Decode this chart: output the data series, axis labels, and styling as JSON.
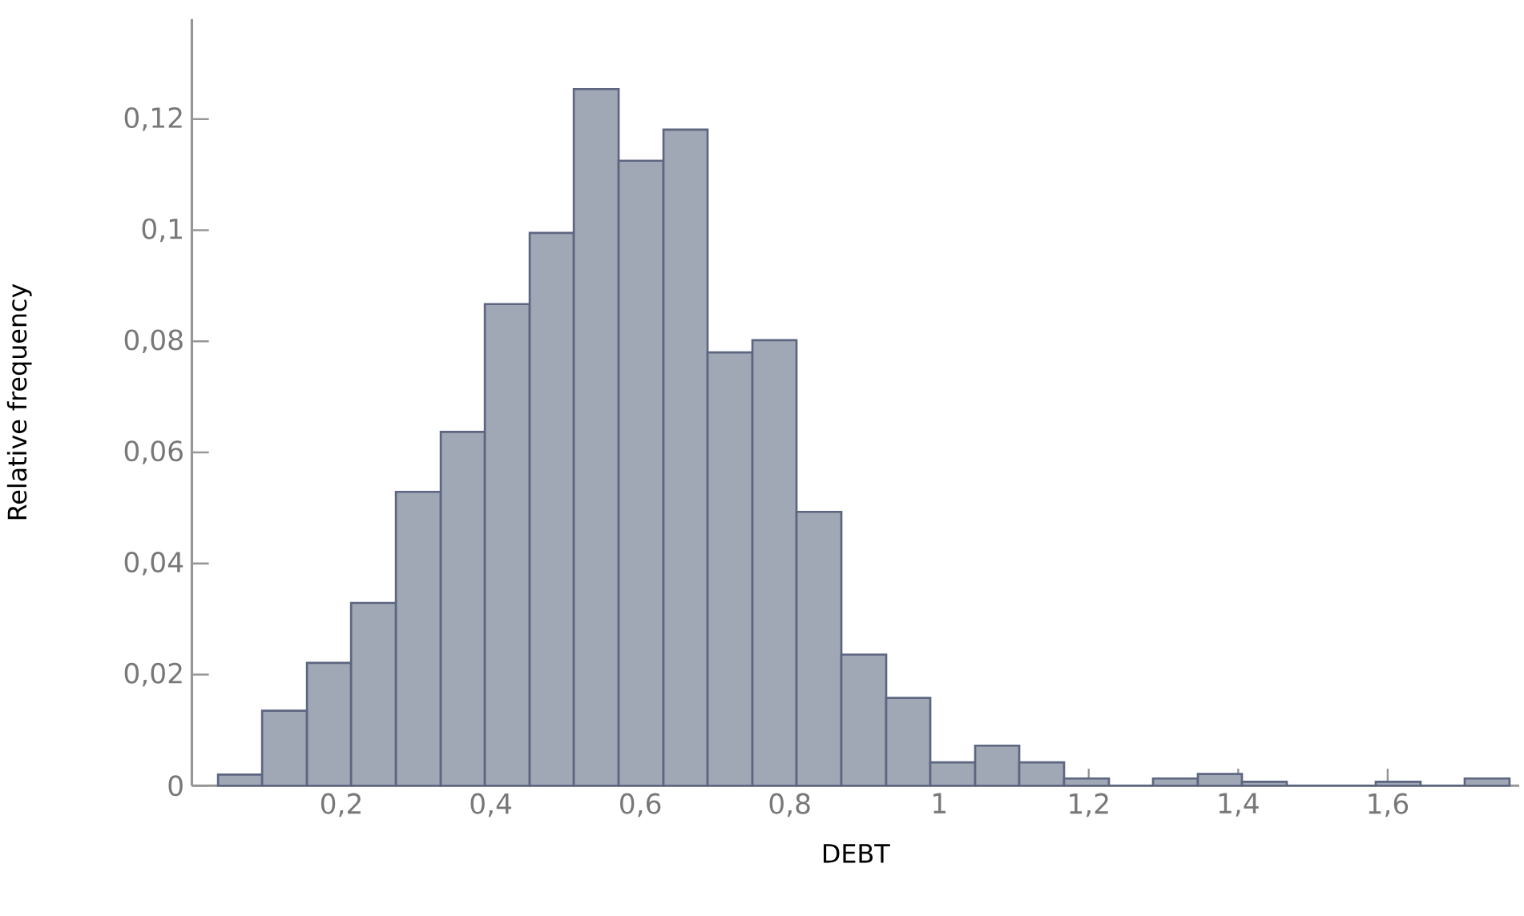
{
  "chart_data": {
    "type": "histogram",
    "xlabel": "DEBT",
    "ylabel": "Relative frequency",
    "bins": [
      0.035,
      0.094,
      0.154,
      0.213,
      0.273,
      0.333,
      0.392,
      0.452,
      0.511,
      0.571,
      0.631,
      0.69,
      0.75,
      0.809,
      0.869,
      0.929,
      0.988,
      1.048,
      1.107,
      1.167,
      1.227,
      1.286,
      1.346,
      1.405,
      1.465,
      1.584,
      1.644,
      1.703,
      1.763
    ],
    "values": [
      0.002,
      0.0135,
      0.0221,
      0.0329,
      0.0529,
      0.0637,
      0.0867,
      0.0995,
      0.1254,
      0.1125,
      0.1181,
      0.078,
      0.0802,
      0.0493,
      0.0236,
      0.0158,
      0.0042,
      0.0072,
      0.0042,
      0.0013,
      0,
      0.0013,
      0.0021,
      0.0007,
      0,
      0.0007,
      0,
      0.0013
    ],
    "color": "#a0a7b5",
    "xlim": [
      0,
      1.776
    ],
    "ylim": [
      0,
      0.138
    ],
    "xticks": [
      {
        "value": 0.2,
        "label": "0,2"
      },
      {
        "value": 0.4,
        "label": "0,4"
      },
      {
        "value": 0.6,
        "label": "0,6"
      },
      {
        "value": 0.8,
        "label": "0,8"
      },
      1,
      {
        "value": 1.2,
        "label": "1,2"
      },
      {
        "value": 1.4,
        "label": "1,4"
      },
      {
        "value": 1.6,
        "label": "1,6"
      }
    ],
    "yticks": [
      0,
      {
        "value": 0.02,
        "label": "0,02"
      },
      {
        "value": 0.04,
        "label": "0,04"
      },
      {
        "value": 0.06,
        "label": "0,06"
      },
      {
        "value": 0.08,
        "label": "0,08"
      },
      {
        "value": 0.1,
        "label": "0,1"
      },
      {
        "value": 0.12,
        "label": "0,12"
      }
    ],
    "grid": false
  }
}
